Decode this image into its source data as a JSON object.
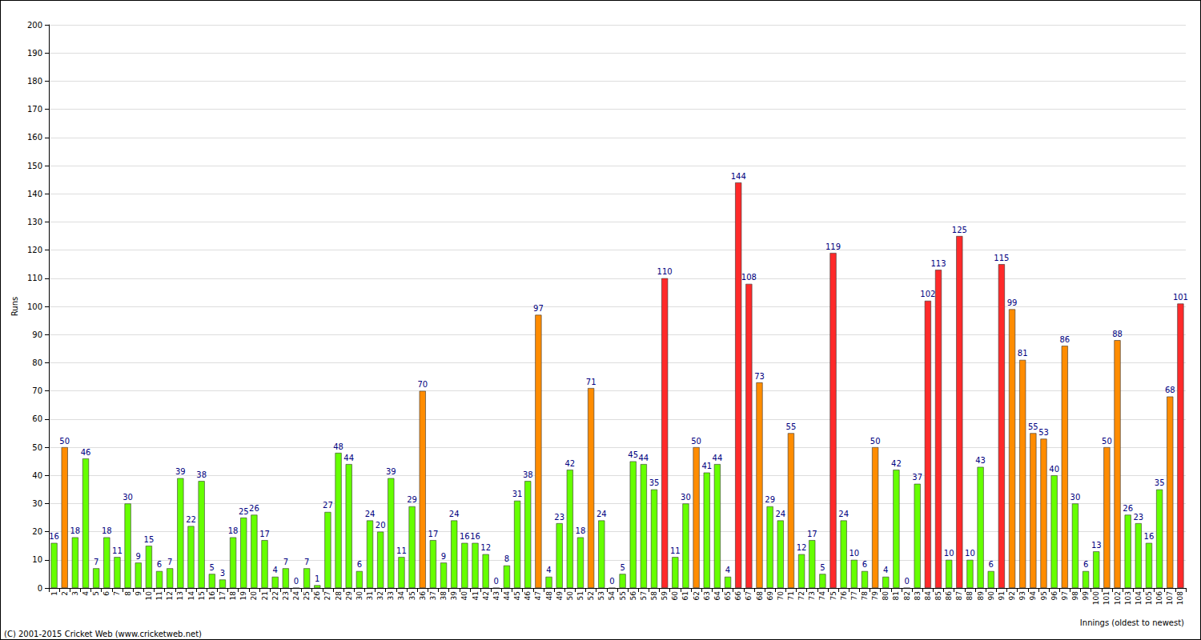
{
  "chart_data": {
    "type": "bar",
    "y_label": "Runs",
    "x_label": "Innings (oldest to newest)",
    "annotations": [
      "(C) 2001-2015 Cricket Web (www.cricketweb.net)"
    ],
    "categories": [
      "1",
      "2",
      "3",
      "4",
      "5",
      "6",
      "7",
      "8",
      "9",
      "10",
      "11",
      "12",
      "13",
      "14",
      "15",
      "16",
      "17",
      "18",
      "19",
      "20",
      "21",
      "22",
      "23",
      "24",
      "25",
      "26",
      "27",
      "28",
      "29",
      "30",
      "31",
      "32",
      "33",
      "34",
      "35",
      "36",
      "37",
      "38",
      "39",
      "40",
      "41",
      "42",
      "43",
      "44",
      "45",
      "46",
      "47",
      "48",
      "49",
      "50",
      "51",
      "52",
      "53",
      "54",
      "55",
      "56",
      "57",
      "58",
      "59",
      "60",
      "61",
      "62",
      "63",
      "64",
      "65",
      "66",
      "67",
      "68",
      "69",
      "70",
      "71",
      "72",
      "73",
      "74",
      "75",
      "76",
      "77",
      "78",
      "79",
      "80",
      "81",
      "82",
      "83",
      "84",
      "85",
      "86",
      "87",
      "88",
      "89",
      "90",
      "91",
      "92",
      "93",
      "94",
      "95",
      "96",
      "97",
      "98",
      "99",
      "100",
      "101",
      "102",
      "103",
      "104",
      "105",
      "106",
      "107",
      "108"
    ],
    "values": [
      16,
      50,
      18,
      46,
      7,
      18,
      11,
      30,
      9,
      15,
      6,
      7,
      39,
      22,
      38,
      5,
      3,
      18,
      25,
      26,
      17,
      4,
      7,
      0,
      7,
      1,
      27,
      48,
      44,
      6,
      24,
      20,
      39,
      11,
      29,
      70,
      17,
      9,
      24,
      16,
      16,
      12,
      0,
      8,
      31,
      38,
      97,
      4,
      23,
      42,
      18,
      71,
      24,
      0,
      5,
      45,
      44,
      35,
      110,
      11,
      30,
      50,
      41,
      44,
      4,
      144,
      108,
      73,
      29,
      24,
      55,
      12,
      17,
      5,
      119,
      24,
      10,
      6,
      50,
      4,
      42,
      0,
      37,
      102,
      113,
      10,
      125,
      10,
      43,
      6,
      115,
      99,
      81,
      55,
      53,
      40,
      86,
      30,
      6,
      13,
      50,
      88,
      26,
      23,
      16,
      35,
      68,
      101
    ],
    "colors": [
      "#66ff00",
      "#ff8c00",
      "#66ff00",
      "#66ff00",
      "#66ff00",
      "#66ff00",
      "#66ff00",
      "#66ff00",
      "#66ff00",
      "#66ff00",
      "#66ff00",
      "#66ff00",
      "#66ff00",
      "#66ff00",
      "#66ff00",
      "#66ff00",
      "#66ff00",
      "#66ff00",
      "#66ff00",
      "#66ff00",
      "#66ff00",
      "#66ff00",
      "#66ff00",
      "#66ff00",
      "#66ff00",
      "#66ff00",
      "#66ff00",
      "#66ff00",
      "#66ff00",
      "#66ff00",
      "#66ff00",
      "#66ff00",
      "#66ff00",
      "#66ff00",
      "#66ff00",
      "#ff8c00",
      "#66ff00",
      "#66ff00",
      "#66ff00",
      "#66ff00",
      "#66ff00",
      "#66ff00",
      "#66ff00",
      "#66ff00",
      "#66ff00",
      "#66ff00",
      "#ff8c00",
      "#66ff00",
      "#66ff00",
      "#66ff00",
      "#66ff00",
      "#ff8c00",
      "#66ff00",
      "#66ff00",
      "#66ff00",
      "#66ff00",
      "#66ff00",
      "#66ff00",
      "#ff2a2a",
      "#66ff00",
      "#66ff00",
      "#ff8c00",
      "#66ff00",
      "#66ff00",
      "#66ff00",
      "#ff2a2a",
      "#ff2a2a",
      "#ff8c00",
      "#66ff00",
      "#66ff00",
      "#ff8c00",
      "#66ff00",
      "#66ff00",
      "#66ff00",
      "#ff2a2a",
      "#66ff00",
      "#66ff00",
      "#66ff00",
      "#ff8c00",
      "#66ff00",
      "#66ff00",
      "#66ff00",
      "#66ff00",
      "#ff2a2a",
      "#ff2a2a",
      "#66ff00",
      "#ff2a2a",
      "#66ff00",
      "#66ff00",
      "#66ff00",
      "#ff2a2a",
      "#ff8c00",
      "#ff8c00",
      "#ff8c00",
      "#ff8c00",
      "#66ff00",
      "#ff8c00",
      "#66ff00",
      "#66ff00",
      "#66ff00",
      "#ff8c00",
      "#ff8c00",
      "#66ff00",
      "#66ff00",
      "#66ff00",
      "#66ff00",
      "#ff8c00",
      "#ff2a2a"
    ],
    "ylim": [
      0,
      200
    ],
    "yticks": [
      0,
      10,
      20,
      30,
      40,
      50,
      60,
      70,
      80,
      90,
      100,
      110,
      120,
      130,
      140,
      150,
      160,
      170,
      180,
      190,
      200
    ],
    "grid": true,
    "data_labels": true
  }
}
